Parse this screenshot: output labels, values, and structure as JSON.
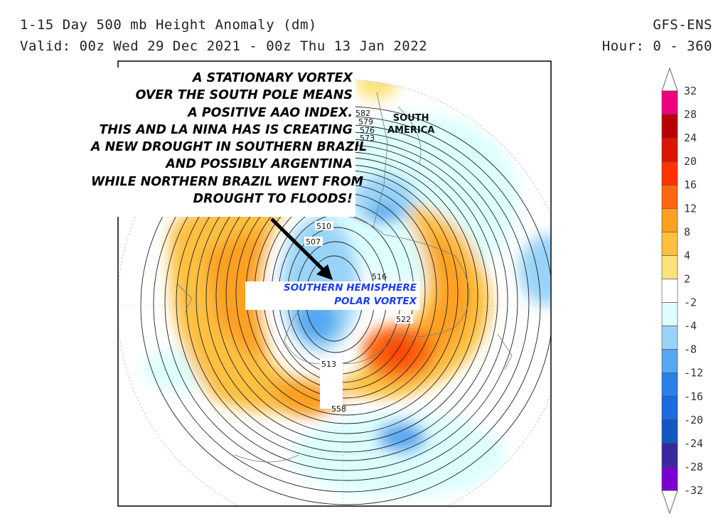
{
  "header": {
    "title": "1-15 Day 500 mb Height Anomaly (dm)",
    "model": "GFS-ENS",
    "valid": "Valid: 00z Wed 29 Dec 2021 - 00z Thu 13 Jan 2022",
    "hour": "Hour: 0 - 360"
  },
  "annotation": {
    "lines": [
      "A STATIONARY VORTEX",
      "OVER THE SOUTH POLE MEANS",
      "A POSITIVE AAO INDEX.",
      "THIS AND LA NINA HAS IS CREATING",
      "A NEW DROUGHT IN SOUTHERN BRAZIL",
      "AND POSSIBLY ARGENTINA",
      "WHILE NORTHERN BRAZIL WENT FROM",
      "DROUGHT TO FLOODS!"
    ],
    "vortex_label": [
      "SOUTHERN HEMISPHERE",
      "POLAR VORTEX"
    ],
    "vortex_color": "#1a3cff",
    "continent_label": [
      "SOUTH",
      "AMERICA"
    ]
  },
  "contour_labels": [
    "582",
    "579",
    "576",
    "573",
    "510",
    "507",
    "516",
    "522",
    "513",
    "558"
  ],
  "colorbar": {
    "ticks": [
      "32",
      "28",
      "24",
      "20",
      "16",
      "12",
      "8",
      "4",
      "2",
      "-2",
      "-4",
      "-8",
      "-12",
      "-16",
      "-20",
      "-24",
      "-28",
      "-32"
    ],
    "colors": [
      "#f0007f",
      "#bb0000",
      "#dd1500",
      "#ff3300",
      "#ff6611",
      "#ffa020",
      "#ffc040",
      "#ffe27a",
      "#ffffff",
      "#ddffff",
      "#99d4f8",
      "#55a8f0",
      "#2880e8",
      "#1a6ae0",
      "#1058c0",
      "#3a28a0",
      "#7a00d0"
    ]
  }
}
